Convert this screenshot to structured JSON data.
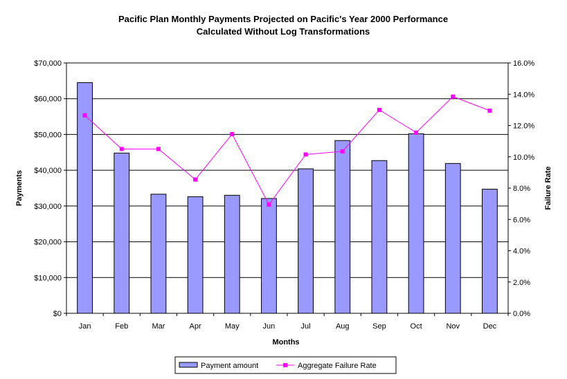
{
  "chart_data": {
    "type": "bar",
    "title": "Pacific Plan Monthly Payments Projected on Pacific's Year 2000 Performance",
    "subtitle": "Calculated Without Log Transformations",
    "xlabel": "Months",
    "ylabel": "Payments",
    "y2label": "Failure Rate",
    "categories": [
      "Jan",
      "Feb",
      "Mar",
      "Apr",
      "May",
      "Jun",
      "Jul",
      "Aug",
      "Sep",
      "Oct",
      "Nov",
      "Dec"
    ],
    "ylim": [
      0,
      70000
    ],
    "y2lim": [
      0,
      0.16
    ],
    "y_ticks": [
      "$0",
      "$10,000",
      "$20,000",
      "$30,000",
      "$40,000",
      "$50,000",
      "$60,000",
      "$70,000"
    ],
    "y2_ticks": [
      "0.0%",
      "2.0%",
      "4.0%",
      "6.0%",
      "8.0%",
      "10.0%",
      "12.0%",
      "14.0%",
      "16.0%"
    ],
    "grid": true,
    "legend_position": "bottom",
    "series": [
      {
        "name": "Payment amount",
        "type": "bar",
        "axis": "left",
        "color": "#9999ff",
        "values": [
          64500,
          44800,
          33300,
          32600,
          33000,
          32100,
          40400,
          48300,
          42700,
          50200,
          41900,
          34700
        ]
      },
      {
        "name": "Aggregate Failure Rate",
        "type": "line",
        "axis": "right",
        "color": "#ff00ff",
        "values": [
          0.1265,
          0.105,
          0.105,
          0.0855,
          0.1145,
          0.0695,
          0.1015,
          0.1035,
          0.13,
          0.1155,
          0.1385,
          0.1295
        ]
      }
    ]
  }
}
